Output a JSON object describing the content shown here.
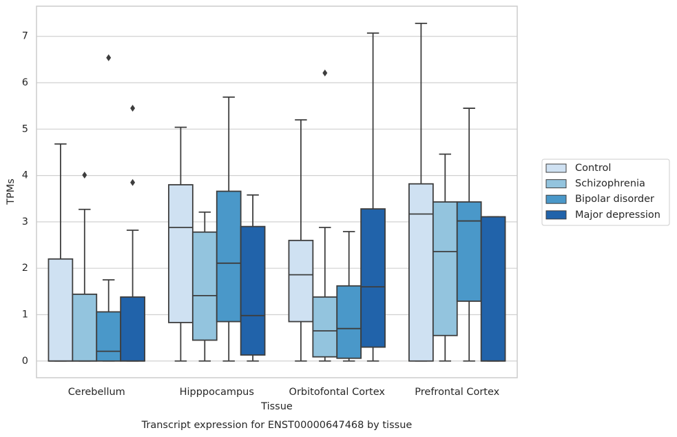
{
  "chart_data": {
    "type": "box",
    "title": "Transcript expression for ENST00000647468 by tissue",
    "x_label": "Tissue",
    "y_label": "TPMs",
    "categories": [
      "Cerebellum",
      "Hipppocampus",
      "Orbitofontal Cortex",
      "Prefrontal Cortex"
    ],
    "ylim": [
      -0.36,
      7.65
    ],
    "yticks": [
      0,
      1,
      2,
      3,
      4,
      5,
      6,
      7
    ],
    "grid": true,
    "legend": "right",
    "series": [
      {
        "name": "Control",
        "color": "#cfe1f2",
        "values": [
          {
            "low": 0,
            "q1": 0,
            "median": 0,
            "q3": 2.2,
            "high": 4.68,
            "outliers": []
          },
          {
            "low": 0,
            "q1": 0.83,
            "median": 2.88,
            "q3": 3.8,
            "high": 5.04,
            "outliers": []
          },
          {
            "low": 0,
            "q1": 0.85,
            "median": 1.86,
            "q3": 2.6,
            "high": 5.2,
            "outliers": []
          },
          {
            "low": 0,
            "q1": 0,
            "median": 3.17,
            "q3": 3.82,
            "high": 7.28,
            "outliers": []
          }
        ]
      },
      {
        "name": "Schizophrenia",
        "color": "#93c4de",
        "values": [
          {
            "low": 0,
            "q1": 0,
            "median": 0,
            "q3": 1.44,
            "high": 3.27,
            "outliers": [
              4.01
            ]
          },
          {
            "low": 0,
            "q1": 0.45,
            "median": 1.41,
            "q3": 2.78,
            "high": 3.21,
            "outliers": []
          },
          {
            "low": 0,
            "q1": 0.09,
            "median": 0.65,
            "q3": 1.38,
            "high": 2.88,
            "outliers": [
              6.21
            ]
          },
          {
            "low": 0,
            "q1": 0.55,
            "median": 2.36,
            "q3": 3.43,
            "high": 4.46,
            "outliers": []
          }
        ]
      },
      {
        "name": "Bipolar disorder",
        "color": "#4a98c9",
        "values": [
          {
            "low": 0,
            "q1": 0,
            "median": 0.21,
            "q3": 1.06,
            "high": 1.75,
            "outliers": [
              6.54
            ]
          },
          {
            "low": 0,
            "q1": 0.85,
            "median": 2.11,
            "q3": 3.66,
            "high": 5.69,
            "outliers": []
          },
          {
            "low": 0,
            "q1": 0.06,
            "median": 0.7,
            "q3": 1.62,
            "high": 2.79,
            "outliers": []
          },
          {
            "low": 0,
            "q1": 1.29,
            "median": 3.02,
            "q3": 3.43,
            "high": 5.45,
            "outliers": []
          }
        ]
      },
      {
        "name": "Major depression",
        "color": "#2163aa",
        "values": [
          {
            "low": 0,
            "q1": 0,
            "median": 0,
            "q3": 1.38,
            "high": 2.82,
            "outliers": [
              5.45,
              3.85
            ]
          },
          {
            "low": 0,
            "q1": 0.13,
            "median": 0.98,
            "q3": 2.9,
            "high": 3.58,
            "outliers": []
          },
          {
            "low": 0,
            "q1": 0.3,
            "median": 1.6,
            "q3": 3.28,
            "high": 7.07,
            "outliers": []
          },
          {
            "low": 0,
            "q1": 0,
            "median": 0,
            "q3": 3.11,
            "high": 3.11,
            "outliers": []
          }
        ]
      }
    ]
  }
}
